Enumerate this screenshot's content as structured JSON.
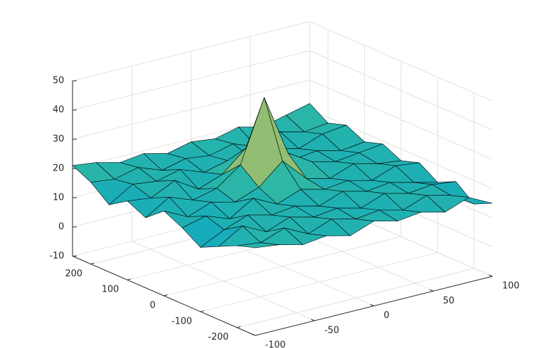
{
  "chart_data": {
    "type": "surface",
    "x": [
      -100,
      -80,
      -60,
      -40,
      -20,
      0,
      20,
      40,
      60,
      80,
      100
    ],
    "y": [
      -250,
      -200,
      -150,
      -100,
      -50,
      0,
      50,
      100,
      150,
      200,
      250
    ],
    "z": [
      [
        20,
        18,
        15,
        12,
        16,
        19,
        14,
        17,
        13,
        18,
        21
      ],
      [
        19,
        17,
        20,
        16,
        18,
        15,
        19,
        16,
        18,
        17,
        20
      ],
      [
        17,
        20,
        16,
        19,
        15,
        18,
        16,
        20,
        17,
        19,
        18
      ],
      [
        18,
        16,
        19,
        17,
        20,
        16,
        18,
        15,
        19,
        16,
        19
      ],
      [
        16,
        19,
        17,
        18,
        16,
        19,
        24,
        18,
        16,
        18,
        17
      ],
      [
        19,
        17,
        18,
        16,
        19,
        26,
        45,
        25,
        18,
        17,
        19
      ],
      [
        17,
        18,
        16,
        19,
        17,
        18,
        24,
        19,
        17,
        19,
        18
      ],
      [
        18,
        16,
        19,
        17,
        18,
        16,
        19,
        17,
        18,
        16,
        20
      ],
      [
        16,
        19,
        17,
        18,
        16,
        19,
        17,
        18,
        16,
        19,
        18
      ],
      [
        19,
        17,
        18,
        16,
        19,
        17,
        18,
        16,
        19,
        17,
        20
      ],
      [
        15,
        12,
        17,
        14,
        18,
        16,
        19,
        17,
        20,
        18,
        22
      ]
    ],
    "xlim": [
      -100,
      100
    ],
    "xticks": [
      -100,
      -50,
      0,
      50,
      100
    ],
    "ylim": [
      -250,
      250
    ],
    "yticks": [
      -200,
      -100,
      0,
      100,
      200
    ],
    "zlim": [
      -10,
      50
    ],
    "zticks": [
      -10,
      0,
      10,
      20,
      30,
      40,
      50
    ],
    "grid": true,
    "edge_color": "#000000",
    "colormap": [
      "#352a87",
      "#0f5cdd",
      "#1481d6",
      "#06a4ca",
      "#2eb7a4",
      "#87bf77",
      "#d1bb59",
      "#fec832",
      "#f9fb0e"
    ]
  }
}
